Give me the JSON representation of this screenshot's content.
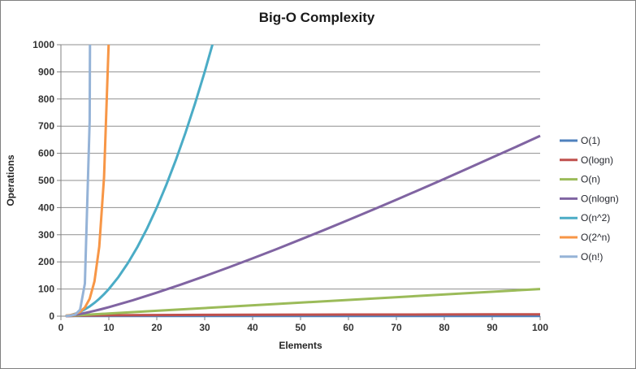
{
  "chart_data": {
    "type": "line",
    "title": "Big-O Complexity",
    "xlabel": "Elements",
    "ylabel": "Operations",
    "xlim": [
      0,
      100
    ],
    "ylim": [
      0,
      1000
    ],
    "x_ticks": [
      0,
      10,
      20,
      30,
      40,
      50,
      60,
      70,
      80,
      90,
      100
    ],
    "y_ticks": [
      0,
      100,
      200,
      300,
      400,
      500,
      600,
      700,
      800,
      900,
      1000
    ],
    "grid": "horizontal",
    "legend_position": "right",
    "series": [
      {
        "name": "O(1)",
        "color": "#4F81BD",
        "points": [
          [
            1,
            1
          ],
          [
            100,
            1
          ]
        ]
      },
      {
        "name": "O(logn)",
        "color": "#C0504D",
        "points": [
          [
            1,
            0
          ],
          [
            2,
            1
          ],
          [
            3,
            1.6
          ],
          [
            4,
            2
          ],
          [
            5,
            2.3
          ],
          [
            6,
            2.6
          ],
          [
            8,
            3
          ],
          [
            10,
            3.3
          ],
          [
            15,
            3.9
          ],
          [
            20,
            4.3
          ],
          [
            30,
            4.9
          ],
          [
            40,
            5.3
          ],
          [
            50,
            5.6
          ],
          [
            60,
            5.9
          ],
          [
            70,
            6.1
          ],
          [
            80,
            6.3
          ],
          [
            90,
            6.5
          ],
          [
            100,
            6.6
          ]
        ]
      },
      {
        "name": "O(n)",
        "color": "#9BBB59",
        "points": [
          [
            1,
            1
          ],
          [
            100,
            100
          ]
        ]
      },
      {
        "name": "O(nlogn)",
        "color": "#8064A2",
        "points": [
          [
            1,
            0
          ],
          [
            2,
            2
          ],
          [
            3,
            4.8
          ],
          [
            4,
            8
          ],
          [
            5,
            11.6
          ],
          [
            6,
            15.5
          ],
          [
            7,
            19.7
          ],
          [
            8,
            24
          ],
          [
            9,
            28.5
          ],
          [
            10,
            33.2
          ],
          [
            15,
            58.6
          ],
          [
            20,
            86.4
          ],
          [
            25,
            116.1
          ],
          [
            30,
            147.2
          ],
          [
            35,
            179.5
          ],
          [
            40,
            212.9
          ],
          [
            45,
            247.1
          ],
          [
            50,
            282.2
          ],
          [
            55,
            318
          ],
          [
            60,
            354.4
          ],
          [
            65,
            391.4
          ],
          [
            70,
            429
          ],
          [
            75,
            467.2
          ],
          [
            80,
            505.7
          ],
          [
            85,
            544.8
          ],
          [
            90,
            584.3
          ],
          [
            95,
            624.1
          ],
          [
            100,
            664.4
          ]
        ]
      },
      {
        "name": "O(n^2)",
        "color": "#4BACC6",
        "points": [
          [
            1,
            1
          ],
          [
            2,
            4
          ],
          [
            3,
            9
          ],
          [
            4,
            16
          ],
          [
            5,
            25
          ],
          [
            6,
            36
          ],
          [
            7,
            49
          ],
          [
            8,
            64
          ],
          [
            9,
            81
          ],
          [
            10,
            100
          ],
          [
            12,
            144
          ],
          [
            14,
            196
          ],
          [
            16,
            256
          ],
          [
            18,
            324
          ],
          [
            20,
            400
          ],
          [
            22,
            484
          ],
          [
            24,
            576
          ],
          [
            26,
            676
          ],
          [
            28,
            784
          ],
          [
            30,
            900
          ],
          [
            32,
            1024
          ]
        ]
      },
      {
        "name": "O(2^n)",
        "color": "#F79646",
        "points": [
          [
            1,
            2
          ],
          [
            2,
            4
          ],
          [
            3,
            8
          ],
          [
            4,
            16
          ],
          [
            5,
            32
          ],
          [
            6,
            64
          ],
          [
            7,
            128
          ],
          [
            8,
            256
          ],
          [
            9,
            512
          ],
          [
            10,
            1024
          ]
        ]
      },
      {
        "name": "O(n!)",
        "color": "#95B3D7",
        "points": [
          [
            1,
            1
          ],
          [
            2,
            2
          ],
          [
            3,
            6
          ],
          [
            4,
            24
          ],
          [
            5,
            120
          ],
          [
            6,
            720
          ],
          [
            7,
            5040
          ]
        ]
      }
    ]
  },
  "styles": {
    "gridline_color": "#8F8F8F",
    "axis_color": "#808080",
    "text_color": "#333333",
    "border_color": "#808080",
    "background": "#FFFFFF",
    "line_width": 3
  }
}
